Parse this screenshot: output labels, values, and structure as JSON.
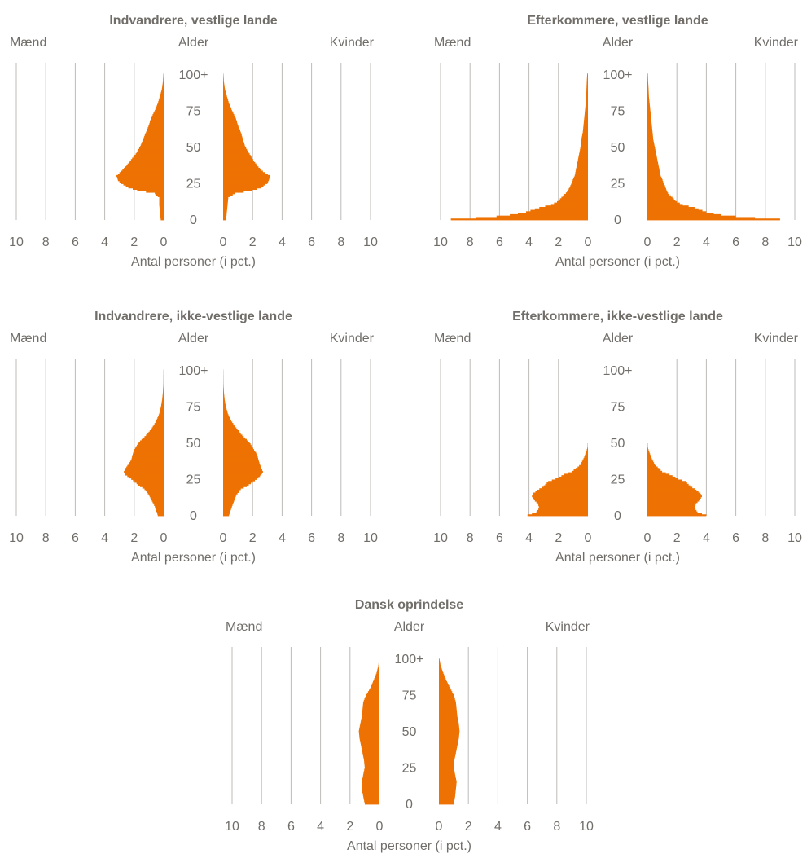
{
  "labels": {
    "men": "Mænd",
    "women": "Kvinder",
    "age": "Alder",
    "xlabel": "Antal personer (i pct.)"
  },
  "colors": {
    "bars": "#ed7203",
    "grid": "#bdbbb8",
    "text": "#716e6a"
  },
  "chart_data": [
    {
      "type": "bar",
      "orientation": "population-pyramid",
      "title": "Indvandrere, vestlige lande",
      "xlabel": "Antal personer (i pct.)",
      "xlim": [
        0,
        10
      ],
      "x_ticks": [
        10,
        8,
        6,
        4,
        2,
        0
      ],
      "age_ticks": [
        "0",
        "25",
        "50",
        "75",
        "100+"
      ],
      "ages": [
        0,
        5,
        10,
        15,
        18,
        20,
        22,
        25,
        27,
        30,
        33,
        36,
        40,
        45,
        50,
        55,
        60,
        65,
        70,
        75,
        80,
        85,
        90,
        95,
        100
      ],
      "series": [
        {
          "name": "Mænd",
          "values": [
            0.2,
            0.25,
            0.3,
            0.3,
            0.6,
            1.8,
            2.4,
            2.9,
            3.1,
            3.2,
            2.9,
            2.6,
            2.3,
            1.9,
            1.6,
            1.4,
            1.2,
            1.0,
            0.85,
            0.6,
            0.4,
            0.25,
            0.12,
            0.05,
            0.02
          ]
        },
        {
          "name": "Kvinder",
          "values": [
            0.2,
            0.25,
            0.3,
            0.35,
            0.8,
            2.0,
            2.6,
            3.0,
            3.1,
            3.2,
            2.7,
            2.4,
            2.1,
            1.8,
            1.5,
            1.35,
            1.2,
            1.0,
            0.85,
            0.6,
            0.4,
            0.25,
            0.12,
            0.05,
            0.02
          ]
        }
      ]
    },
    {
      "type": "bar",
      "orientation": "population-pyramid",
      "title": "Efterkommere, vestlige lande",
      "xlabel": "Antal personer (i pct.)",
      "xlim": [
        0,
        10
      ],
      "x_ticks": [
        10,
        8,
        6,
        4,
        2,
        0
      ],
      "age_ticks": [
        "0",
        "25",
        "50",
        "75",
        "100+"
      ],
      "ages": [
        0,
        1,
        2,
        3,
        5,
        8,
        10,
        12,
        15,
        18,
        20,
        23,
        25,
        28,
        30,
        35,
        40,
        45,
        50,
        55,
        60,
        65,
        70,
        75,
        80,
        85,
        90,
        95,
        100
      ],
      "series": [
        {
          "name": "Mænd",
          "values": [
            9.3,
            7.6,
            6.2,
            5.3,
            4.2,
            3.3,
            2.5,
            2.1,
            1.8,
            1.5,
            1.35,
            1.2,
            1.1,
            1.0,
            0.9,
            0.8,
            0.7,
            0.6,
            0.5,
            0.45,
            0.35,
            0.3,
            0.25,
            0.2,
            0.15,
            0.12,
            0.1,
            0.08,
            0.05
          ]
        },
        {
          "name": "Kvinder",
          "values": [
            9.0,
            7.3,
            6.0,
            5.0,
            4.0,
            3.2,
            2.4,
            2.0,
            1.7,
            1.4,
            1.3,
            1.2,
            1.1,
            1.0,
            0.9,
            0.8,
            0.7,
            0.6,
            0.5,
            0.4,
            0.35,
            0.3,
            0.25,
            0.2,
            0.15,
            0.1,
            0.08,
            0.05,
            0.03
          ]
        }
      ]
    },
    {
      "type": "bar",
      "orientation": "population-pyramid",
      "title": "Indvandrere, ikke-vestlige lande",
      "xlabel": "Antal personer (i pct.)",
      "xlim": [
        0,
        10
      ],
      "x_ticks": [
        10,
        8,
        6,
        4,
        2,
        0
      ],
      "age_ticks": [
        "0",
        "25",
        "50",
        "75",
        "100+"
      ],
      "ages": [
        0,
        3,
        6,
        10,
        14,
        18,
        20,
        25,
        28,
        30,
        32,
        35,
        38,
        42,
        45,
        50,
        53,
        56,
        60,
        65,
        70,
        75,
        80,
        85,
        90,
        100
      ],
      "series": [
        {
          "name": "Mænd",
          "values": [
            0.4,
            0.5,
            0.6,
            0.8,
            1.0,
            1.3,
            1.6,
            2.2,
            2.6,
            2.7,
            2.6,
            2.4,
            2.2,
            2.1,
            2.0,
            1.7,
            1.4,
            1.1,
            0.8,
            0.5,
            0.3,
            0.18,
            0.1,
            0.05,
            0.02,
            0.01
          ]
        },
        {
          "name": "Kvinder",
          "values": [
            0.4,
            0.5,
            0.6,
            0.75,
            0.9,
            1.2,
            1.6,
            2.3,
            2.6,
            2.7,
            2.6,
            2.5,
            2.4,
            2.3,
            2.1,
            1.8,
            1.5,
            1.2,
            0.9,
            0.55,
            0.32,
            0.18,
            0.1,
            0.05,
            0.02,
            0.01
          ]
        }
      ]
    },
    {
      "type": "bar",
      "orientation": "population-pyramid",
      "title": "Efterkommere, ikke-vestlige lande",
      "xlabel": "Antal personer (i pct.)",
      "xlim": [
        0,
        10
      ],
      "x_ticks": [
        10,
        8,
        6,
        4,
        2,
        0
      ],
      "age_ticks": [
        "0",
        "25",
        "50",
        "75",
        "100+"
      ],
      "ages": [
        0,
        2,
        5,
        8,
        10,
        13,
        15,
        18,
        20,
        23,
        25,
        28,
        30,
        33,
        35,
        38,
        40,
        43,
        45,
        47
      ],
      "series": [
        {
          "name": "Mænd",
          "values": [
            4.1,
            3.5,
            3.3,
            3.4,
            3.6,
            3.8,
            3.7,
            3.3,
            3.0,
            2.7,
            2.2,
            1.6,
            1.1,
            0.7,
            0.5,
            0.35,
            0.25,
            0.15,
            0.08,
            0.02
          ]
        },
        {
          "name": "Kvinder",
          "values": [
            4.0,
            3.4,
            3.2,
            3.3,
            3.5,
            3.7,
            3.6,
            3.2,
            2.9,
            2.6,
            2.1,
            1.5,
            1.0,
            0.7,
            0.5,
            0.35,
            0.25,
            0.15,
            0.08,
            0.02
          ]
        }
      ]
    },
    {
      "type": "bar",
      "orientation": "population-pyramid",
      "title": "Dansk oprindelse",
      "xlabel": "Antal personer (i pct.)",
      "xlim": [
        0,
        10
      ],
      "x_ticks": [
        10,
        8,
        6,
        4,
        2,
        0
      ],
      "age_ticks": [
        "0",
        "25",
        "50",
        "75",
        "100+"
      ],
      "ages": [
        0,
        5,
        10,
        15,
        20,
        25,
        30,
        35,
        40,
        45,
        50,
        55,
        60,
        65,
        70,
        75,
        80,
        85,
        90,
        95,
        100
      ],
      "series": [
        {
          "name": "Mænd",
          "values": [
            1.0,
            1.1,
            1.2,
            1.2,
            1.1,
            1.0,
            1.05,
            1.15,
            1.25,
            1.35,
            1.4,
            1.3,
            1.2,
            1.15,
            1.1,
            0.9,
            0.6,
            0.4,
            0.2,
            0.08,
            0.02
          ]
        },
        {
          "name": "Kvinder",
          "values": [
            1.0,
            1.1,
            1.15,
            1.2,
            1.1,
            1.0,
            1.05,
            1.15,
            1.25,
            1.35,
            1.4,
            1.35,
            1.25,
            1.2,
            1.15,
            1.0,
            0.75,
            0.5,
            0.3,
            0.12,
            0.03
          ]
        }
      ]
    }
  ]
}
